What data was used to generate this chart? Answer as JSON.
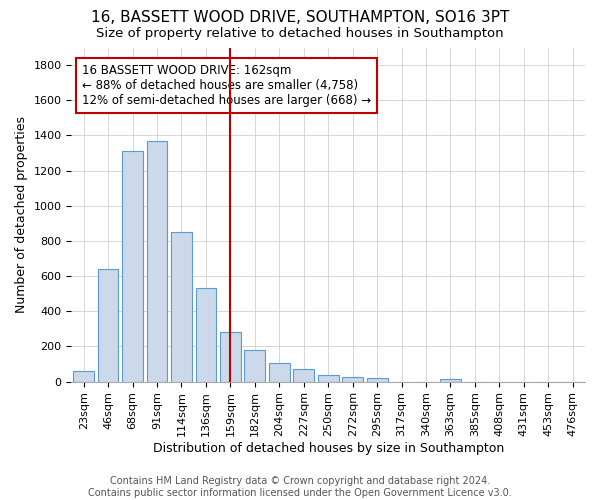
{
  "title": "16, BASSETT WOOD DRIVE, SOUTHAMPTON, SO16 3PT",
  "subtitle": "Size of property relative to detached houses in Southampton",
  "xlabel": "Distribution of detached houses by size in Southampton",
  "ylabel": "Number of detached properties",
  "categories": [
    "23sqm",
    "46sqm",
    "68sqm",
    "91sqm",
    "114sqm",
    "136sqm",
    "159sqm",
    "182sqm",
    "204sqm",
    "227sqm",
    "250sqm",
    "272sqm",
    "295sqm",
    "317sqm",
    "340sqm",
    "363sqm",
    "385sqm",
    "408sqm",
    "431sqm",
    "453sqm",
    "476sqm"
  ],
  "values": [
    60,
    640,
    1310,
    1370,
    850,
    530,
    280,
    180,
    105,
    70,
    35,
    25,
    20,
    0,
    0,
    15,
    0,
    0,
    0,
    0,
    0
  ],
  "highlight_index": 6,
  "bar_color": "#ccd9ea",
  "bar_edge_color": "#5b9bd5",
  "highlight_line_color": "#c00000",
  "annotation_box_edge": "#c00000",
  "annotation_line1": "16 BASSETT WOOD DRIVE: 162sqm",
  "annotation_line2": "← 88% of detached houses are smaller (4,758)",
  "annotation_line3": "12% of semi-detached houses are larger (668) →",
  "footnote1": "Contains HM Land Registry data © Crown copyright and database right 2024.",
  "footnote2": "Contains public sector information licensed under the Open Government Licence v3.0.",
  "ylim": [
    0,
    1900
  ],
  "yticks": [
    0,
    200,
    400,
    600,
    800,
    1000,
    1200,
    1400,
    1600,
    1800
  ],
  "title_fontsize": 11,
  "subtitle_fontsize": 9.5,
  "xlabel_fontsize": 9,
  "ylabel_fontsize": 9,
  "tick_fontsize": 8,
  "footnote_fontsize": 7
}
